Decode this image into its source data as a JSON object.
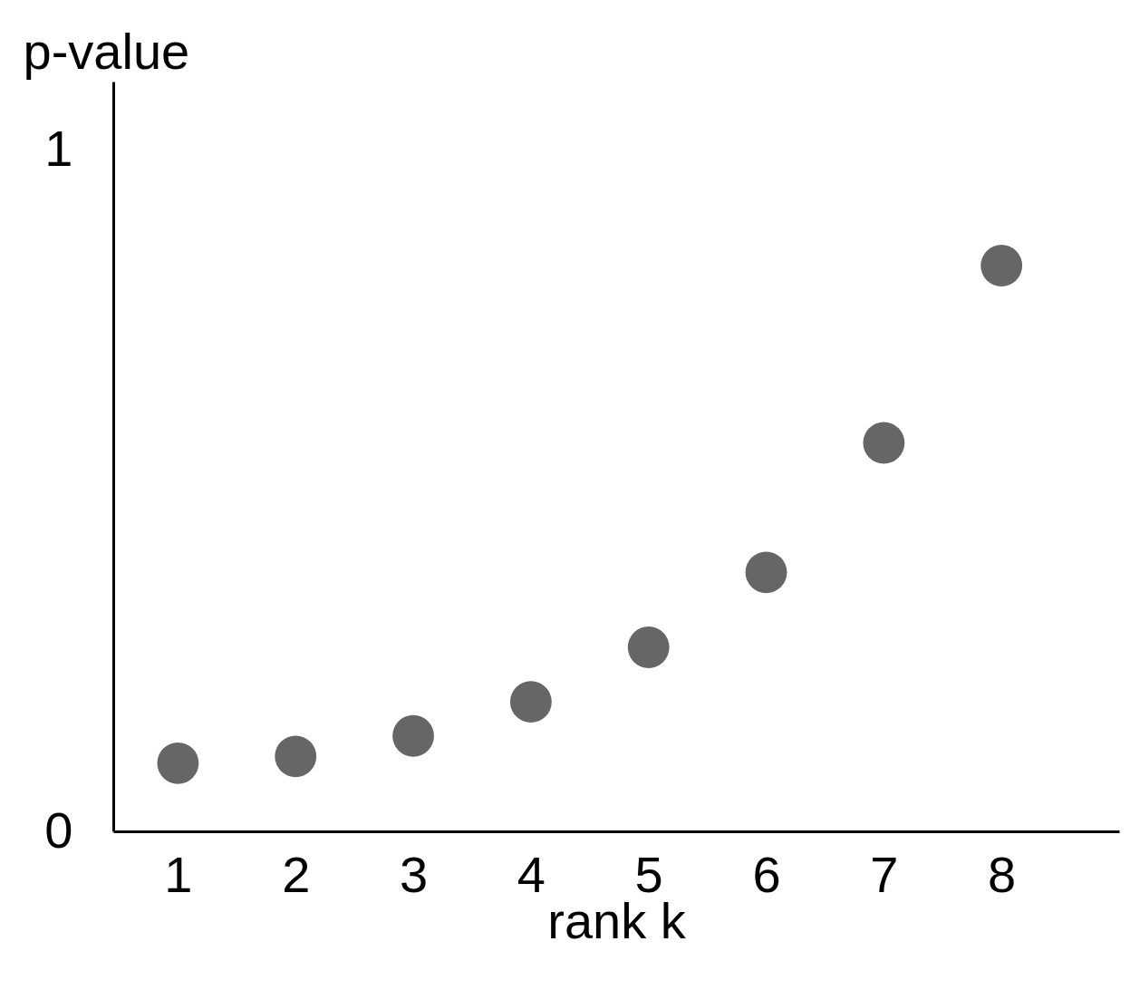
{
  "chart_data": {
    "type": "scatter",
    "xlabel": "rank k",
    "ylabel": "p-value",
    "x": [
      1,
      2,
      3,
      4,
      5,
      6,
      7,
      8
    ],
    "series": [
      {
        "color": "#666666",
        "values": [
          0.1,
          0.11,
          0.14,
          0.19,
          0.27,
          0.38,
          0.57,
          0.83
        ]
      }
    ],
    "xlim": [
      0.45,
      9
    ],
    "ylim": [
      0,
      1.1
    ],
    "xticks": [
      1,
      2,
      3,
      4,
      5,
      6,
      7,
      8
    ],
    "yticks": [
      0,
      1
    ],
    "marker": "circle"
  }
}
